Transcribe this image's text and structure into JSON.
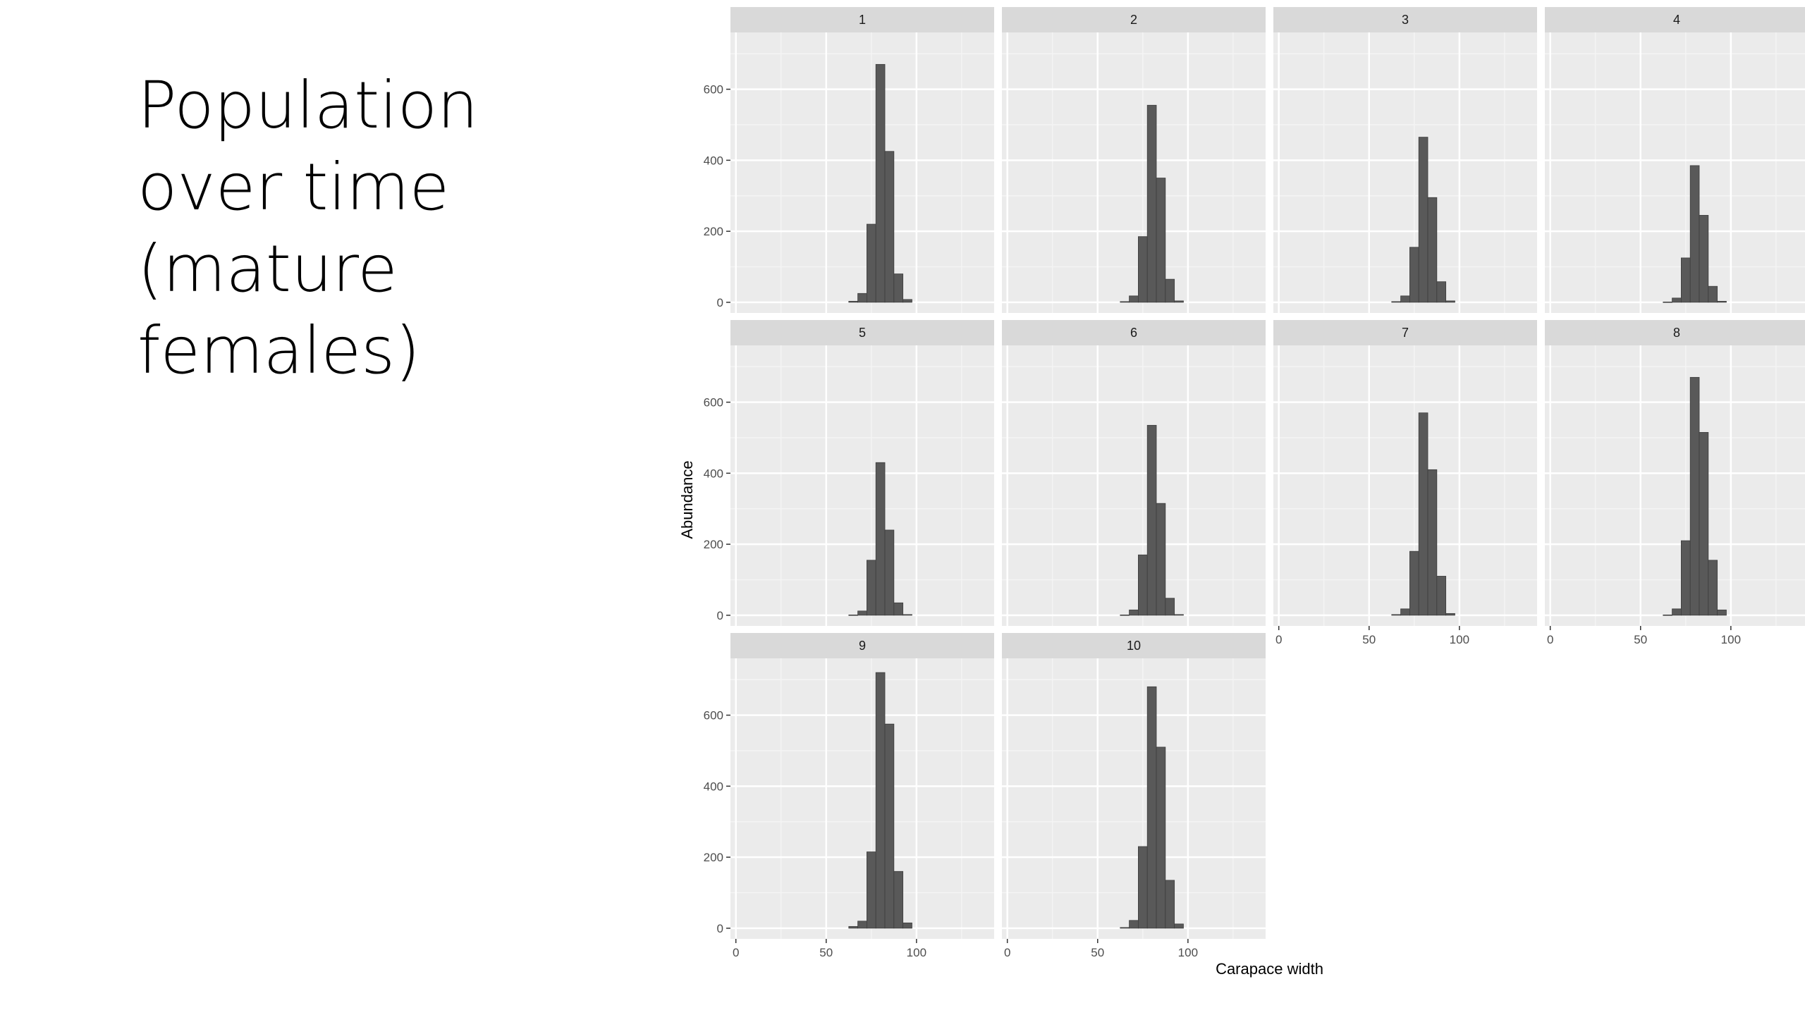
{
  "slide": {
    "title_lines": [
      "Population",
      "over time",
      "(mature",
      "females)"
    ]
  },
  "chart_data": {
    "type": "bar",
    "layout": "facet_wrap",
    "xlabel": "Carapace width",
    "ylabel": "Abundance",
    "xlim": [
      -3,
      143
    ],
    "ylim": [
      -30,
      760
    ],
    "x_ticks": [
      0,
      50,
      100
    ],
    "y_ticks": [
      0,
      200,
      400,
      600
    ],
    "bin_width": 5,
    "grid": true,
    "colors": {
      "bar": "#595959",
      "panel": "#ebebeb",
      "strip": "#d9d9d9",
      "grid_major": "#ffffff",
      "grid_minor": "#f4f4f4"
    },
    "bin_centers": [
      65,
      70,
      75,
      80,
      85,
      90,
      95
    ],
    "panels": [
      {
        "label": "1",
        "values": [
          3,
          25,
          220,
          670,
          425,
          80,
          8
        ]
      },
      {
        "label": "2",
        "values": [
          2,
          18,
          185,
          555,
          350,
          65,
          4
        ]
      },
      {
        "label": "3",
        "values": [
          2,
          18,
          155,
          465,
          295,
          58,
          4
        ]
      },
      {
        "label": "4",
        "values": [
          1,
          12,
          125,
          385,
          245,
          45,
          3
        ]
      },
      {
        "label": "5",
        "values": [
          1,
          12,
          155,
          430,
          240,
          35,
          2
        ]
      },
      {
        "label": "6",
        "values": [
          1,
          15,
          170,
          535,
          315,
          48,
          2
        ]
      },
      {
        "label": "7",
        "values": [
          2,
          18,
          180,
          570,
          410,
          110,
          5
        ]
      },
      {
        "label": "8",
        "values": [
          1,
          18,
          210,
          670,
          515,
          155,
          15
        ]
      },
      {
        "label": "9",
        "values": [
          5,
          20,
          215,
          720,
          575,
          160,
          15
        ]
      },
      {
        "label": "10",
        "values": [
          2,
          22,
          230,
          680,
          510,
          135,
          12
        ]
      }
    ]
  }
}
